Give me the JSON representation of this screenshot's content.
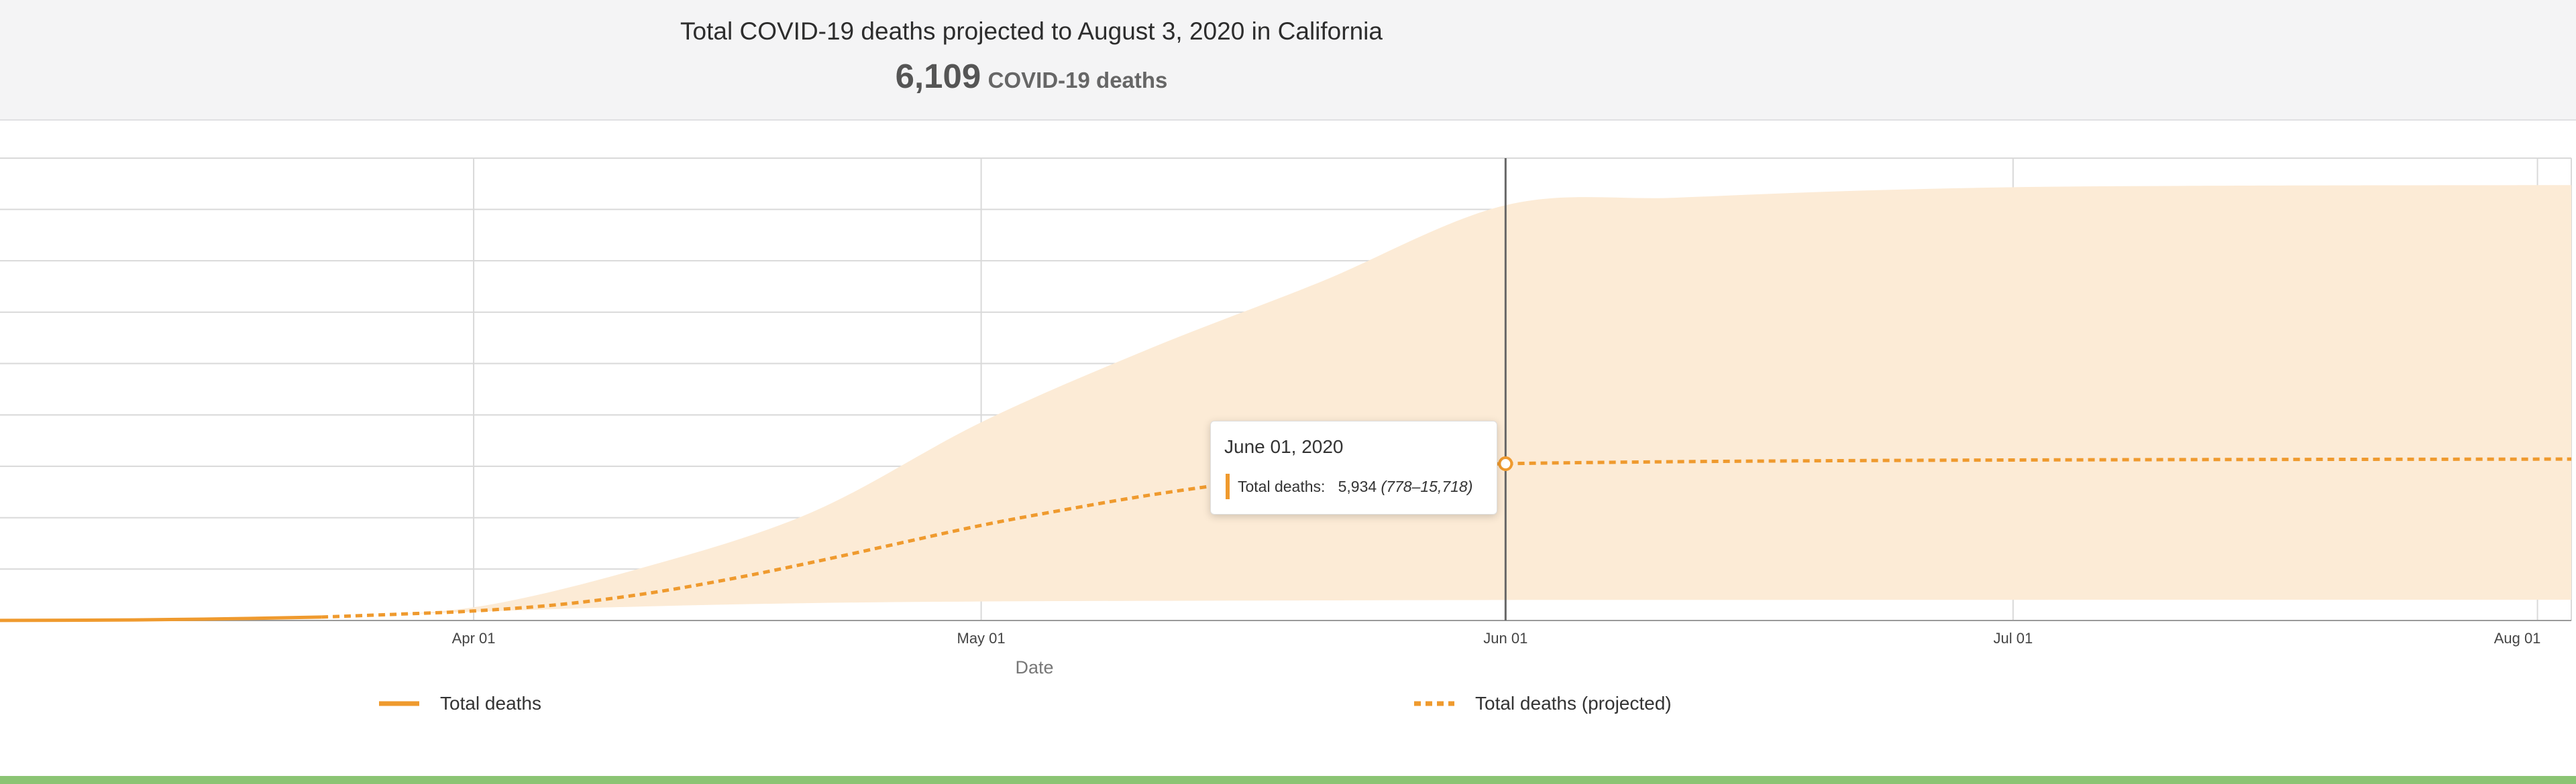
{
  "header": {
    "title": "Total COVID-19 deaths projected to August 3, 2020 in California",
    "summary_value": "6,109",
    "summary_unit": "COVID-19 deaths"
  },
  "tooltip": {
    "date": "June 01, 2020",
    "label": "Total deaths:",
    "value": "5,934",
    "range": "(778–15,718)"
  },
  "colors": {
    "line": "#ef9a2e",
    "band": "#fcebd6",
    "grid": "#d9d9d9",
    "footer": "#8bc474"
  },
  "chart_data": {
    "type": "line",
    "title": "Total COVID-19 deaths projected to August 3, 2020 in California",
    "xlabel": "Date",
    "ylabel": "",
    "x_ticks": [
      "2020-04-01",
      "2020-05-01",
      "2020-06-01",
      "2020-07-01",
      "2020-08-01"
    ],
    "x_tick_labels": [
      "Apr 01",
      "May 01",
      "Jun 01",
      "Jul 01",
      "Aug 01"
    ],
    "xlim": [
      "2020-03-04",
      "2020-08-03"
    ],
    "ylim": [
      0,
      17500
    ],
    "y_grid_step": 1945,
    "legend_position": "bottom",
    "series": [
      {
        "name": "Total deaths",
        "style": "solid",
        "x": [
          "2020-03-04",
          "2020-03-10",
          "2020-03-16",
          "2020-03-23"
        ],
        "y": [
          2,
          15,
          50,
          130
        ]
      },
      {
        "name": "Total deaths (projected)",
        "style": "dashed",
        "x": [
          "2020-03-23",
          "2020-03-28",
          "2020-04-01",
          "2020-04-06",
          "2020-04-11",
          "2020-04-16",
          "2020-04-21",
          "2020-04-26",
          "2020-05-01",
          "2020-05-06",
          "2020-05-11",
          "2020-05-16",
          "2020-05-21",
          "2020-05-26",
          "2020-06-01",
          "2020-06-11",
          "2020-06-21",
          "2020-07-01",
          "2020-07-11",
          "2020-07-21",
          "2020-08-03"
        ],
        "y": [
          130,
          250,
          360,
          600,
          1000,
          1550,
          2200,
          2900,
          3600,
          4200,
          4750,
          5200,
          5550,
          5800,
          5934,
          6010,
          6050,
          6075,
          6090,
          6100,
          6109
        ]
      }
    ],
    "uncertainty_band": {
      "name": "Total deaths (projected) range",
      "x": [
        "2020-03-23",
        "2020-04-01",
        "2020-04-11",
        "2020-04-21",
        "2020-05-01",
        "2020-05-11",
        "2020-05-21",
        "2020-06-01",
        "2020-06-11",
        "2020-06-21",
        "2020-07-01",
        "2020-07-11",
        "2020-07-21",
        "2020-08-03"
      ],
      "lower": [
        130,
        330,
        530,
        660,
        720,
        745,
        760,
        778,
        780,
        782,
        784,
        785,
        786,
        786
      ],
      "upper": [
        130,
        500,
        2000,
        4100,
        7500,
        10300,
        12800,
        15718,
        16000,
        16250,
        16400,
        16450,
        16470,
        16480
      ]
    },
    "highlight": {
      "x": "2020-06-01",
      "y": 5934,
      "lower": 778,
      "upper": 15718
    }
  },
  "legend": [
    {
      "name": "Total deaths",
      "style": "solid"
    },
    {
      "name": "Total deaths (projected)",
      "style": "dashed"
    }
  ]
}
